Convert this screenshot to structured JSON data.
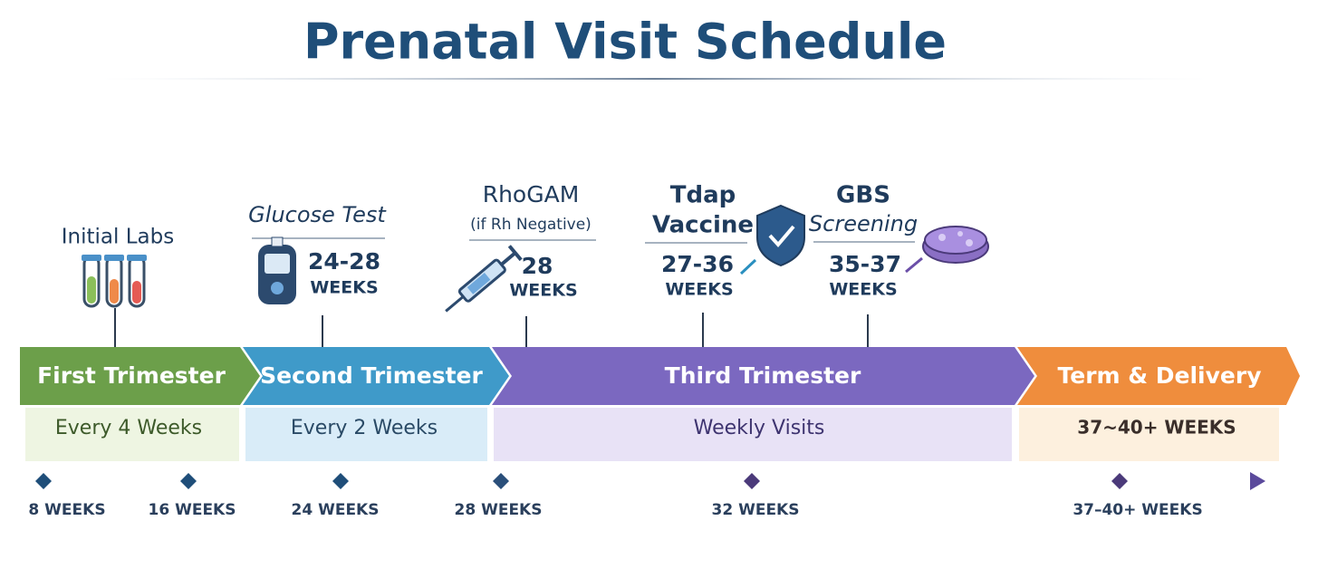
{
  "header": {
    "title": "Prenatal Visit Schedule"
  },
  "milestones": [
    {
      "title": "Initial Labs"
    },
    {
      "title": "Glucose Test",
      "range": "24-28",
      "unit": "WEEKS"
    },
    {
      "title": "RhoGAM",
      "subtitle": "(if Rh Negative)",
      "range": "28",
      "unit": "WEEKS"
    },
    {
      "title": "Tdap",
      "subtitle": "Vaccine",
      "range": "27-36",
      "unit": "WEEKS"
    },
    {
      "title": "GBS",
      "subtitle": "Screening",
      "range": "35-37",
      "unit": "WEEKS"
    }
  ],
  "phases": [
    {
      "name": "First Trimester",
      "frequency": "Every 4 Weeks"
    },
    {
      "name": "Second Trimester",
      "frequency": "Every 2 Weeks"
    },
    {
      "name": "Third Trimester",
      "frequency": "Weekly Visits"
    },
    {
      "name": "Term & Delivery",
      "frequency": "37~40+ WEEKS"
    }
  ],
  "timeline": [
    "8 WEEKS",
    "16 WEEKS",
    "24 WEEKS",
    "28 WEEKS",
    "32 WEEKS",
    "37–40+ WEEKS"
  ]
}
